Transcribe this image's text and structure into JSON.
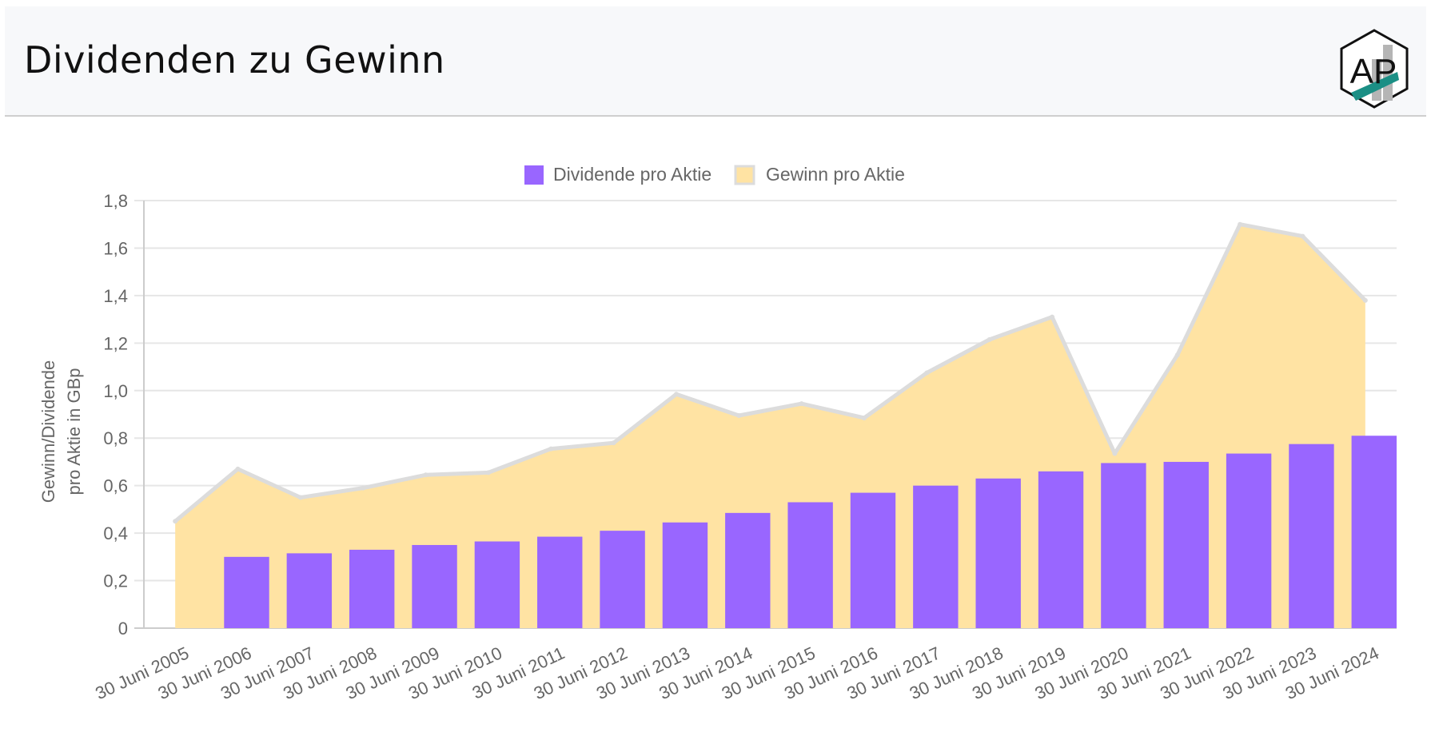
{
  "header": {
    "title": "Dividenden zu Gewinn",
    "logo_text": "AP"
  },
  "colors": {
    "dividend_bar": "#9966ff",
    "earnings_fill": "#ffe3a3",
    "earnings_line": "#dcdcdc",
    "grid": "#e6e6e6",
    "axis_text": "#666666"
  },
  "chart_data": {
    "type": "bar",
    "title": "",
    "ylabel": [
      "Gewinn/Dividende",
      "pro Aktie in GBp"
    ],
    "xlabel": "",
    "ylim": [
      0,
      1.8
    ],
    "yticks": [
      "0",
      "0,2",
      "0,4",
      "0,6",
      "0,8",
      "1,0",
      "1,2",
      "1,4",
      "1,6",
      "1,8"
    ],
    "ytick_values": [
      0,
      0.2,
      0.4,
      0.6,
      0.8,
      1.0,
      1.2,
      1.4,
      1.6,
      1.8
    ],
    "legend_position": "top-center",
    "categories": [
      "30 Juni 2005",
      "30 Juni 2006",
      "30 Juni 2007",
      "30 Juni 2008",
      "30 Juni 2009",
      "30 Juni 2010",
      "30 Juni 2011",
      "30 Juni 2012",
      "30 Juni 2013",
      "30 Juni 2014",
      "30 Juni 2015",
      "30 Juni 2016",
      "30 Juni 2017",
      "30 Juni 2018",
      "30 Juni 2019",
      "30 Juni 2020",
      "30 Juni 2021",
      "30 Juni 2022",
      "30 Juni 2023",
      "30 Juni 2024"
    ],
    "series": [
      {
        "name": "Dividende pro Aktie",
        "type": "bar",
        "values": [
          null,
          0.3,
          0.315,
          0.33,
          0.35,
          0.365,
          0.385,
          0.41,
          0.445,
          0.485,
          0.53,
          0.57,
          0.6,
          0.63,
          0.66,
          0.695,
          0.7,
          0.735,
          0.775,
          0.81
        ]
      },
      {
        "name": "Gewinn pro Aktie",
        "type": "area",
        "values": [
          0.45,
          0.67,
          0.55,
          0.59,
          0.645,
          0.655,
          0.755,
          0.78,
          0.985,
          0.895,
          0.945,
          0.885,
          1.075,
          1.215,
          1.31,
          0.735,
          1.15,
          1.7,
          1.65,
          1.38
        ]
      }
    ]
  }
}
